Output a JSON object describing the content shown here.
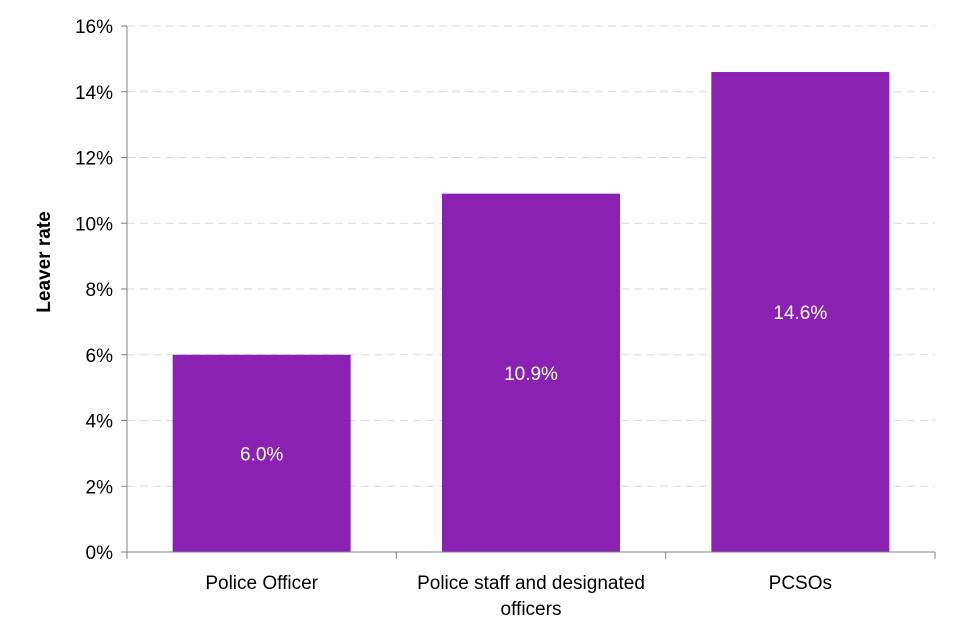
{
  "chart_data": {
    "type": "bar",
    "title": "",
    "xlabel": "",
    "ylabel": "Leaver rate",
    "categories": [
      [
        "Police Officer"
      ],
      [
        "Police staff and designated",
        "officers"
      ],
      [
        "PCSOs"
      ]
    ],
    "values": [
      6.0,
      10.9,
      14.6
    ],
    "data_labels": [
      "6.0%",
      "10.9%",
      "14.6%"
    ],
    "ylim": [
      0,
      16
    ],
    "yticks": [
      0,
      2,
      4,
      6,
      8,
      10,
      12,
      14,
      16
    ],
    "ytick_labels": [
      "0%",
      "2%",
      "4%",
      "6%",
      "8%",
      "10%",
      "12%",
      "14%",
      "16%"
    ],
    "grid": true,
    "legend": "none",
    "colors": {
      "bar": "#8B21B3",
      "grid": "#D9D9D9",
      "axis": "#808080"
    }
  }
}
